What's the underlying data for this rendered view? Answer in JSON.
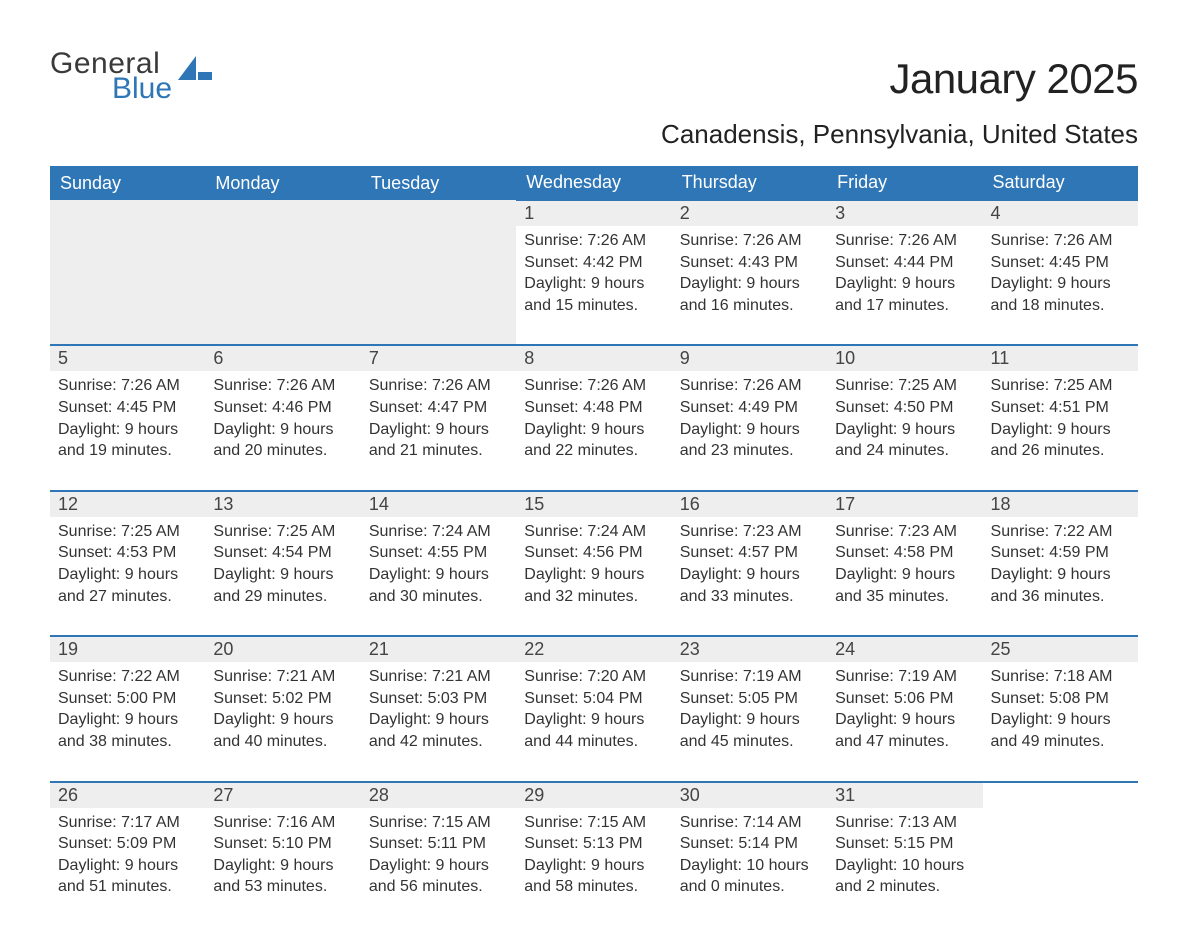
{
  "logo": {
    "line1": "General",
    "line2": "Blue"
  },
  "title": "January 2025",
  "location": "Canadensis, Pennsylvania, United States",
  "colors": {
    "header_blue": "#2e76b6",
    "day_bar_grey": "#eeeeee",
    "text_dark": "#333333",
    "background": "#ffffff"
  },
  "fonts": {
    "title_size_pt": 42,
    "subtitle_size_pt": 26,
    "weekday_size_pt": 18,
    "daynum_size_pt": 18,
    "body_size_pt": 16
  },
  "weekdays": [
    "Sunday",
    "Monday",
    "Tuesday",
    "Wednesday",
    "Thursday",
    "Friday",
    "Saturday"
  ],
  "labels": {
    "sunrise": "Sunrise:",
    "sunset": "Sunset:",
    "daylight": "Daylight:"
  },
  "month": {
    "first_weekday_index": 3,
    "num_days": 31,
    "days": [
      {
        "n": 1,
        "sunrise": "7:26 AM",
        "sunset": "4:42 PM",
        "daylight": "9 hours and 15 minutes."
      },
      {
        "n": 2,
        "sunrise": "7:26 AM",
        "sunset": "4:43 PM",
        "daylight": "9 hours and 16 minutes."
      },
      {
        "n": 3,
        "sunrise": "7:26 AM",
        "sunset": "4:44 PM",
        "daylight": "9 hours and 17 minutes."
      },
      {
        "n": 4,
        "sunrise": "7:26 AM",
        "sunset": "4:45 PM",
        "daylight": "9 hours and 18 minutes."
      },
      {
        "n": 5,
        "sunrise": "7:26 AM",
        "sunset": "4:45 PM",
        "daylight": "9 hours and 19 minutes."
      },
      {
        "n": 6,
        "sunrise": "7:26 AM",
        "sunset": "4:46 PM",
        "daylight": "9 hours and 20 minutes."
      },
      {
        "n": 7,
        "sunrise": "7:26 AM",
        "sunset": "4:47 PM",
        "daylight": "9 hours and 21 minutes."
      },
      {
        "n": 8,
        "sunrise": "7:26 AM",
        "sunset": "4:48 PM",
        "daylight": "9 hours and 22 minutes."
      },
      {
        "n": 9,
        "sunrise": "7:26 AM",
        "sunset": "4:49 PM",
        "daylight": "9 hours and 23 minutes."
      },
      {
        "n": 10,
        "sunrise": "7:25 AM",
        "sunset": "4:50 PM",
        "daylight": "9 hours and 24 minutes."
      },
      {
        "n": 11,
        "sunrise": "7:25 AM",
        "sunset": "4:51 PM",
        "daylight": "9 hours and 26 minutes."
      },
      {
        "n": 12,
        "sunrise": "7:25 AM",
        "sunset": "4:53 PM",
        "daylight": "9 hours and 27 minutes."
      },
      {
        "n": 13,
        "sunrise": "7:25 AM",
        "sunset": "4:54 PM",
        "daylight": "9 hours and 29 minutes."
      },
      {
        "n": 14,
        "sunrise": "7:24 AM",
        "sunset": "4:55 PM",
        "daylight": "9 hours and 30 minutes."
      },
      {
        "n": 15,
        "sunrise": "7:24 AM",
        "sunset": "4:56 PM",
        "daylight": "9 hours and 32 minutes."
      },
      {
        "n": 16,
        "sunrise": "7:23 AM",
        "sunset": "4:57 PM",
        "daylight": "9 hours and 33 minutes."
      },
      {
        "n": 17,
        "sunrise": "7:23 AM",
        "sunset": "4:58 PM",
        "daylight": "9 hours and 35 minutes."
      },
      {
        "n": 18,
        "sunrise": "7:22 AM",
        "sunset": "4:59 PM",
        "daylight": "9 hours and 36 minutes."
      },
      {
        "n": 19,
        "sunrise": "7:22 AM",
        "sunset": "5:00 PM",
        "daylight": "9 hours and 38 minutes."
      },
      {
        "n": 20,
        "sunrise": "7:21 AM",
        "sunset": "5:02 PM",
        "daylight": "9 hours and 40 minutes."
      },
      {
        "n": 21,
        "sunrise": "7:21 AM",
        "sunset": "5:03 PM",
        "daylight": "9 hours and 42 minutes."
      },
      {
        "n": 22,
        "sunrise": "7:20 AM",
        "sunset": "5:04 PM",
        "daylight": "9 hours and 44 minutes."
      },
      {
        "n": 23,
        "sunrise": "7:19 AM",
        "sunset": "5:05 PM",
        "daylight": "9 hours and 45 minutes."
      },
      {
        "n": 24,
        "sunrise": "7:19 AM",
        "sunset": "5:06 PM",
        "daylight": "9 hours and 47 minutes."
      },
      {
        "n": 25,
        "sunrise": "7:18 AM",
        "sunset": "5:08 PM",
        "daylight": "9 hours and 49 minutes."
      },
      {
        "n": 26,
        "sunrise": "7:17 AM",
        "sunset": "5:09 PM",
        "daylight": "9 hours and 51 minutes."
      },
      {
        "n": 27,
        "sunrise": "7:16 AM",
        "sunset": "5:10 PM",
        "daylight": "9 hours and 53 minutes."
      },
      {
        "n": 28,
        "sunrise": "7:15 AM",
        "sunset": "5:11 PM",
        "daylight": "9 hours and 56 minutes."
      },
      {
        "n": 29,
        "sunrise": "7:15 AM",
        "sunset": "5:13 PM",
        "daylight": "9 hours and 58 minutes."
      },
      {
        "n": 30,
        "sunrise": "7:14 AM",
        "sunset": "5:14 PM",
        "daylight": "10 hours and 0 minutes."
      },
      {
        "n": 31,
        "sunrise": "7:13 AM",
        "sunset": "5:15 PM",
        "daylight": "10 hours and 2 minutes."
      }
    ]
  }
}
